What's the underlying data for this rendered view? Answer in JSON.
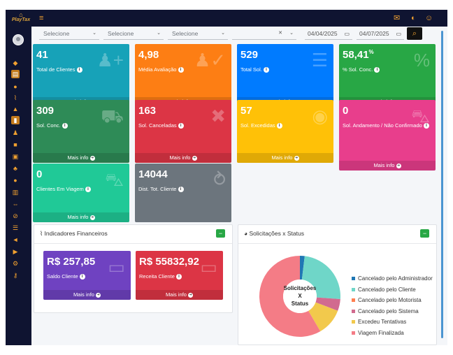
{
  "topbar": {
    "logo_text": "PlayTax",
    "menu_icon": "hamburger-icon",
    "icons": [
      "chat-icon",
      "toggle-icon",
      "user-icon"
    ]
  },
  "filters": {
    "selects": [
      {
        "value": "Selecione"
      },
      {
        "value": "Selecione"
      },
      {
        "value": "Selecione"
      },
      {
        "value": ""
      }
    ],
    "date_from": "04/04/2025",
    "date_to": "04/07/2025"
  },
  "cards": [
    {
      "value": "41",
      "label": "Total de Clientes",
      "footer": "Mais info",
      "color": "#17a2b8",
      "icon": "user-plus-icon"
    },
    {
      "value": "4,98",
      "label": "Média Avaliação",
      "footer": "Mais info",
      "color": "#fd7e14",
      "icon": "user-check-icon"
    },
    {
      "value": "529",
      "label": "Total Sol.",
      "footer": "Mais info",
      "color": "#007bff",
      "icon": "list-ol-icon"
    },
    {
      "value": "58,41",
      "value_suffix": "%",
      "label": "% Sol. Conc.",
      "footer": "Mais info",
      "color": "#28a745",
      "icon": "percent-icon"
    },
    {
      "value": "309",
      "label": "Sol. Conc.",
      "footer": "Mais info",
      "color": "#2e8b57",
      "icon": "cart-icon"
    },
    {
      "value": "163",
      "label": "Sol. Canceladas",
      "footer": "Mais info",
      "color": "#dc3545",
      "icon": "times-circle-icon"
    },
    {
      "value": "57",
      "label": "Sol. Excedidas",
      "footer": "Mais info",
      "color": "#ffc107",
      "icon": "dot-circle-icon"
    },
    {
      "value": "0",
      "label": "Sol. Andamento / Não Confirmado",
      "footer": "Mais info",
      "color": "#e83e8c",
      "icon": "car-icon"
    },
    {
      "value": "0",
      "label": "Clientes Em Viagem",
      "footer": "Mais info",
      "color": "#20c997",
      "icon": "car-side-icon"
    },
    {
      "value": "14044",
      "label": "Dist. Tot. Cliente",
      "footer": "",
      "color": "#6c757d",
      "icon": "route-icon"
    }
  ],
  "financial": {
    "title": "Indicadores Financeiros",
    "cards": [
      {
        "value": "R$ 257,85",
        "label": "Saldo Cliente",
        "footer": "Mais info",
        "color": "#6f42c1",
        "icon": "money-bill-icon"
      },
      {
        "value": "R$ 55832,92",
        "label": "Receita Cliente",
        "footer": "Mais info",
        "color": "#dc3545",
        "icon": "money-bill-icon"
      }
    ]
  },
  "status": {
    "title": "Solicitações x Status",
    "center_label_1": "Solicitações",
    "center_label_2": "X",
    "center_label_3": "Status",
    "legend": [
      {
        "label": "Cancelado pelo Administrador",
        "color": "#1f77b4"
      },
      {
        "label": "Cancelado pelo Cliente",
        "color": "#6fd6c8"
      },
      {
        "label": "Cancelado pelo Motorista",
        "color": "#ff7f50"
      },
      {
        "label": "Cancelado pelo Sistema",
        "color": "#d16b8f"
      },
      {
        "label": "Excedeu Tentativas",
        "color": "#f2c94c"
      },
      {
        "label": "Viagem Finalizada",
        "color": "#f47c86"
      }
    ]
  },
  "chart_data": {
    "type": "pie",
    "categories": [
      "Cancelado pelo Administrador",
      "Cancelado pelo Cliente",
      "Cancelado pelo Motorista",
      "Cancelado pelo Sistema",
      "Excedeu Tentativas",
      "Viagem Finalizada"
    ],
    "values": [
      10,
      128,
      0,
      25,
      57,
      309
    ],
    "colors": [
      "#1f77b4",
      "#6fd6c8",
      "#ff7f50",
      "#d16b8f",
      "#f2c94c",
      "#f47c86"
    ],
    "legend_position": "right"
  }
}
